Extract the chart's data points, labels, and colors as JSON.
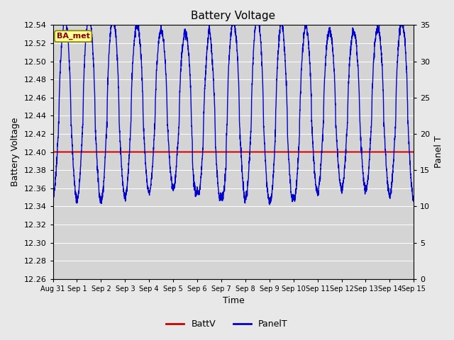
{
  "title": "Battery Voltage",
  "xlabel": "Time",
  "ylabel_left": "Battery Voltage",
  "ylabel_right": "Panel T",
  "ylim_left": [
    12.26,
    12.54
  ],
  "ylim_right": [
    0,
    35
  ],
  "yticks_left": [
    12.26,
    12.28,
    12.3,
    12.32,
    12.34,
    12.36,
    12.38,
    12.4,
    12.42,
    12.44,
    12.46,
    12.48,
    12.5,
    12.52,
    12.54
  ],
  "yticks_right": [
    0,
    5,
    10,
    15,
    20,
    25,
    30,
    35
  ],
  "batt_v": 12.4,
  "batt_color": "#cc0000",
  "panel_color": "#0000cc",
  "bg_color": "#e8e8e8",
  "plot_bg_color": "#d4d4d4",
  "annotation_text": "BA_met",
  "annotation_bg": "#ffff99",
  "annotation_fg": "#880000",
  "annotation_border": "#888800",
  "legend_labels": [
    "BattV",
    "PanelT"
  ],
  "x_tick_labels": [
    "Aug 31",
    "Sep 1",
    "Sep 2",
    "Sep 3",
    "Sep 4",
    "Sep 5",
    "Sep 6",
    "Sep 7",
    "Sep 8",
    "Sep 9",
    "Sep 10",
    "Sep 11",
    "Sep 12",
    "Sep 13",
    "Sep 14",
    "Sep 15"
  ],
  "figsize": [
    6.4,
    4.8
  ],
  "dpi": 100
}
